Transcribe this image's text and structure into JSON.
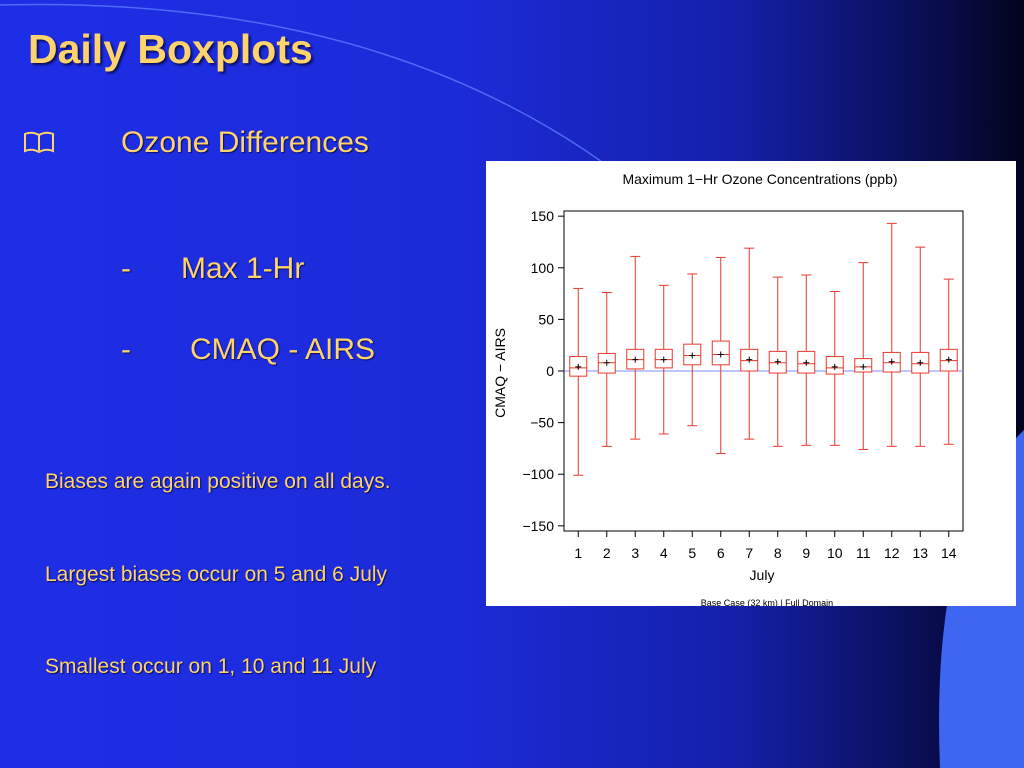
{
  "slide": {
    "title": "Daily Boxplots",
    "heading": "Ozone Differences",
    "sub_item_1": {
      "dash": "-",
      "text": "Max 1-Hr"
    },
    "sub_item_2": {
      "dash": "-",
      "text": "CMAQ - AIRS"
    },
    "notes": [
      "Biases are again positive on all days.",
      "Largest biases occur on 5 and 6 July",
      "Smallest occur on 1, 10 and 11 July"
    ]
  },
  "colors": {
    "title_text": "#ffd36b",
    "background": "#1e2ee6",
    "accent_shape": "#3f66f0",
    "box_color": "#e8392c"
  },
  "icons": {
    "bullet": "book-icon"
  },
  "chart_data": {
    "type": "boxplot",
    "title": "Maximum 1−Hr Ozone Concentrations (ppb)",
    "xlabel": "July",
    "ylabel": "CMAQ − AIRS",
    "footnote": "Base Case (32 km) | Full Domain",
    "ylim": [
      -155,
      155
    ],
    "yticks": [
      {
        "v": 150,
        "label": "150"
      },
      {
        "v": 100,
        "label": "100"
      },
      {
        "v": 50,
        "label": "50"
      },
      {
        "v": 0,
        "label": "0"
      },
      {
        "v": -50,
        "label": "−50"
      },
      {
        "v": -100,
        "label": "−100"
      },
      {
        "v": -150,
        "label": "−150"
      }
    ],
    "categories": [
      "1",
      "2",
      "3",
      "4",
      "5",
      "6",
      "7",
      "8",
      "9",
      "10",
      "11",
      "12",
      "13",
      "14"
    ],
    "boxes": [
      {
        "min": -101,
        "q1": -5,
        "median": 3,
        "q3": 14,
        "max": 80,
        "mean": 4
      },
      {
        "min": -73,
        "q1": -2,
        "median": 8,
        "q3": 17,
        "max": 76,
        "mean": 8
      },
      {
        "min": -66,
        "q1": 2,
        "median": 11,
        "q3": 21,
        "max": 111,
        "mean": 11
      },
      {
        "min": -61,
        "q1": 3,
        "median": 11,
        "q3": 21,
        "max": 83,
        "mean": 11
      },
      {
        "min": -53,
        "q1": 6,
        "median": 15,
        "q3": 26,
        "max": 94,
        "mean": 15
      },
      {
        "min": -80,
        "q1": 6,
        "median": 16,
        "q3": 29,
        "max": 110,
        "mean": 16
      },
      {
        "min": -66,
        "q1": 0,
        "median": 10,
        "q3": 21,
        "max": 119,
        "mean": 11
      },
      {
        "min": -73,
        "q1": -2,
        "median": 8,
        "q3": 19,
        "max": 91,
        "mean": 9
      },
      {
        "min": -72,
        "q1": -2,
        "median": 7,
        "q3": 19,
        "max": 93,
        "mean": 8
      },
      {
        "min": -72,
        "q1": -3,
        "median": 3,
        "q3": 14,
        "max": 77,
        "mean": 4
      },
      {
        "min": -76,
        "q1": -1,
        "median": 4,
        "q3": 12,
        "max": 105,
        "mean": 4
      },
      {
        "min": -73,
        "q1": -1,
        "median": 8,
        "q3": 18,
        "max": 143,
        "mean": 9
      },
      {
        "min": -73,
        "q1": -2,
        "median": 7,
        "q3": 18,
        "max": 120,
        "mean": 8
      },
      {
        "min": -71,
        "q1": 0,
        "median": 10,
        "q3": 21,
        "max": 89,
        "mean": 11
      }
    ]
  }
}
